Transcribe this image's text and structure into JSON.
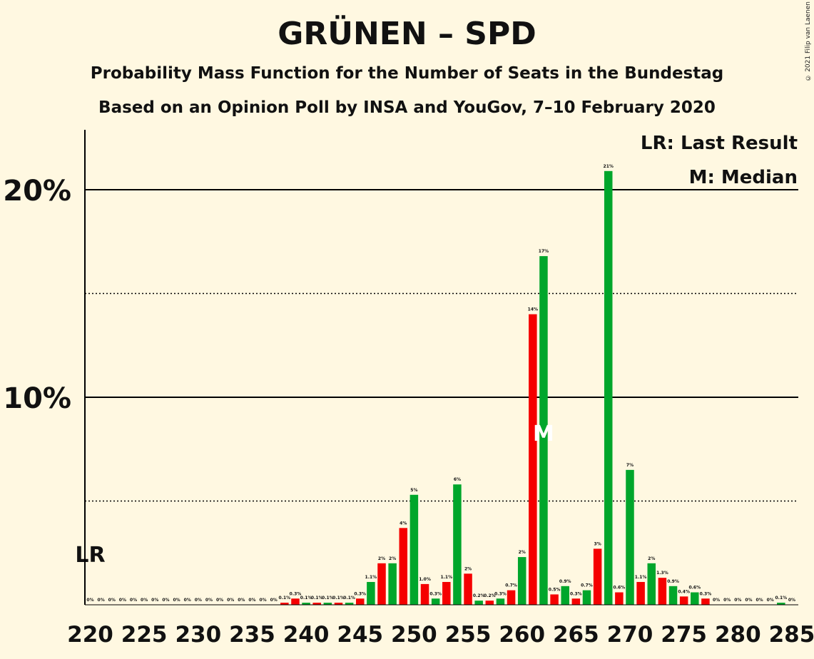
{
  "title": "GRÜNEN – SPD",
  "subtitle_1": "Probability Mass Function for the Number of Seats in the Bundestag",
  "subtitle_2": "Based on an Opinion Poll by INSA and YouGov, 7–10 February 2020",
  "copyright": "© 2021 Filip van Laenen",
  "legend": {
    "last_result": "LR: Last Result",
    "median": "M: Median"
  },
  "chart_data": {
    "type": "bar",
    "xlabel": "",
    "ylabel": "",
    "ylim": [
      0,
      22.8
    ],
    "y_ticks": [
      {
        "value": 10,
        "label": "10%"
      },
      {
        "value": 20,
        "label": "20%"
      }
    ],
    "y_dotted_lines": [
      5,
      15
    ],
    "x_tick_labels": [
      "220",
      "225",
      "230",
      "235",
      "240",
      "245",
      "250",
      "255",
      "260",
      "265",
      "270",
      "275",
      "280",
      "285"
    ],
    "last_result_seat": 220,
    "last_result_marker": "LR",
    "median_seat": 262,
    "median_marker": "M",
    "colors": {
      "red": "#F50000",
      "green": "#00A62B",
      "axis": "#000000",
      "background": "#FFF8E1"
    },
    "bars": [
      {
        "seat": 220,
        "value": 0,
        "label": "0%",
        "color": "red"
      },
      {
        "seat": 221,
        "value": 0,
        "label": "0%",
        "color": "green"
      },
      {
        "seat": 222,
        "value": 0,
        "label": "0%",
        "color": "red"
      },
      {
        "seat": 223,
        "value": 0,
        "label": "0%",
        "color": "green"
      },
      {
        "seat": 224,
        "value": 0,
        "label": "0%",
        "color": "red"
      },
      {
        "seat": 225,
        "value": 0,
        "label": "0%",
        "color": "green"
      },
      {
        "seat": 226,
        "value": 0,
        "label": "0%",
        "color": "red"
      },
      {
        "seat": 227,
        "value": 0,
        "label": "0%",
        "color": "green"
      },
      {
        "seat": 228,
        "value": 0,
        "label": "0%",
        "color": "red"
      },
      {
        "seat": 229,
        "value": 0,
        "label": "0%",
        "color": "green"
      },
      {
        "seat": 230,
        "value": 0,
        "label": "0%",
        "color": "red"
      },
      {
        "seat": 231,
        "value": 0,
        "label": "0%",
        "color": "green"
      },
      {
        "seat": 232,
        "value": 0,
        "label": "0%",
        "color": "red"
      },
      {
        "seat": 233,
        "value": 0,
        "label": "0%",
        "color": "green"
      },
      {
        "seat": 234,
        "value": 0,
        "label": "0%",
        "color": "red"
      },
      {
        "seat": 235,
        "value": 0,
        "label": "0%",
        "color": "green"
      },
      {
        "seat": 236,
        "value": 0,
        "label": "0%",
        "color": "red"
      },
      {
        "seat": 237,
        "value": 0,
        "label": "0%",
        "color": "green"
      },
      {
        "seat": 238,
        "value": 0.1,
        "label": "0.1%",
        "color": "red"
      },
      {
        "seat": 239,
        "value": 0.3,
        "label": "0.3%",
        "color": "red"
      },
      {
        "seat": 240,
        "value": 0.1,
        "label": "0.1%",
        "color": "green"
      },
      {
        "seat": 241,
        "value": 0.1,
        "label": "0.1%",
        "color": "red"
      },
      {
        "seat": 242,
        "value": 0.1,
        "label": "0.1%",
        "color": "green"
      },
      {
        "seat": 243,
        "value": 0.1,
        "label": "0.1%",
        "color": "red"
      },
      {
        "seat": 244,
        "value": 0.1,
        "label": "0.1%",
        "color": "green"
      },
      {
        "seat": 245,
        "value": 0.3,
        "label": "0.3%",
        "color": "red"
      },
      {
        "seat": 246,
        "value": 1.1,
        "label": "1.1%",
        "color": "green"
      },
      {
        "seat": 247,
        "value": 2,
        "label": "2%",
        "color": "red"
      },
      {
        "seat": 248,
        "value": 2,
        "label": "2%",
        "color": "green"
      },
      {
        "seat": 249,
        "value": 3.7,
        "label": "4%",
        "color": "red"
      },
      {
        "seat": 250,
        "value": 5.3,
        "label": "5%",
        "color": "green"
      },
      {
        "seat": 251,
        "value": 1.0,
        "label": "1.0%",
        "color": "red"
      },
      {
        "seat": 252,
        "value": 0.3,
        "label": "0.3%",
        "color": "green"
      },
      {
        "seat": 253,
        "value": 1.1,
        "label": "1.1%",
        "color": "red"
      },
      {
        "seat": 254,
        "value": 5.8,
        "label": "6%",
        "color": "green"
      },
      {
        "seat": 255,
        "value": 1.5,
        "label": "2%",
        "color": "red"
      },
      {
        "seat": 256,
        "value": 0.2,
        "label": "0.2%",
        "color": "green"
      },
      {
        "seat": 257,
        "value": 0.2,
        "label": "0.2%",
        "color": "red"
      },
      {
        "seat": 258,
        "value": 0.3,
        "label": "0.3%",
        "color": "green"
      },
      {
        "seat": 259,
        "value": 0.7,
        "label": "0.7%",
        "color": "red"
      },
      {
        "seat": 260,
        "value": 2.3,
        "label": "2%",
        "color": "green"
      },
      {
        "seat": 261,
        "value": 14,
        "label": "14%",
        "color": "red"
      },
      {
        "seat": 262,
        "value": 16.8,
        "label": "17%",
        "color": "green"
      },
      {
        "seat": 263,
        "value": 0.5,
        "label": "0.5%",
        "color": "red"
      },
      {
        "seat": 264,
        "value": 0.9,
        "label": "0.9%",
        "color": "green"
      },
      {
        "seat": 265,
        "value": 0.3,
        "label": "0.3%",
        "color": "red"
      },
      {
        "seat": 266,
        "value": 0.7,
        "label": "0.7%",
        "color": "green"
      },
      {
        "seat": 267,
        "value": 2.7,
        "label": "3%",
        "color": "red"
      },
      {
        "seat": 268,
        "value": 20.9,
        "label": "21%",
        "color": "green"
      },
      {
        "seat": 269,
        "value": 0.6,
        "label": "0.6%",
        "color": "red"
      },
      {
        "seat": 270,
        "value": 6.5,
        "label": "7%",
        "color": "green"
      },
      {
        "seat": 271,
        "value": 1.1,
        "label": "1.1%",
        "color": "red"
      },
      {
        "seat": 272,
        "value": 2,
        "label": "2%",
        "color": "green"
      },
      {
        "seat": 273,
        "value": 1.3,
        "label": "1.3%",
        "color": "red"
      },
      {
        "seat": 274,
        "value": 0.9,
        "label": "0.9%",
        "color": "green"
      },
      {
        "seat": 275,
        "value": 0.4,
        "label": "0.4%",
        "color": "red"
      },
      {
        "seat": 276,
        "value": 0.6,
        "label": "0.6%",
        "color": "green"
      },
      {
        "seat": 277,
        "value": 0.3,
        "label": "0.3%",
        "color": "red"
      },
      {
        "seat": 278,
        "value": 0,
        "label": "0%",
        "color": "green"
      },
      {
        "seat": 279,
        "value": 0,
        "label": "0%",
        "color": "red"
      },
      {
        "seat": 280,
        "value": 0,
        "label": "0%",
        "color": "green"
      },
      {
        "seat": 281,
        "value": 0,
        "label": "0%",
        "color": "red"
      },
      {
        "seat": 282,
        "value": 0,
        "label": "0%",
        "color": "green"
      },
      {
        "seat": 283,
        "value": 0,
        "label": "0%",
        "color": "red"
      },
      {
        "seat": 284,
        "value": 0.1,
        "label": "0.1%",
        "color": "green"
      },
      {
        "seat": 285,
        "value": 0,
        "label": "0%",
        "color": "red"
      }
    ]
  }
}
